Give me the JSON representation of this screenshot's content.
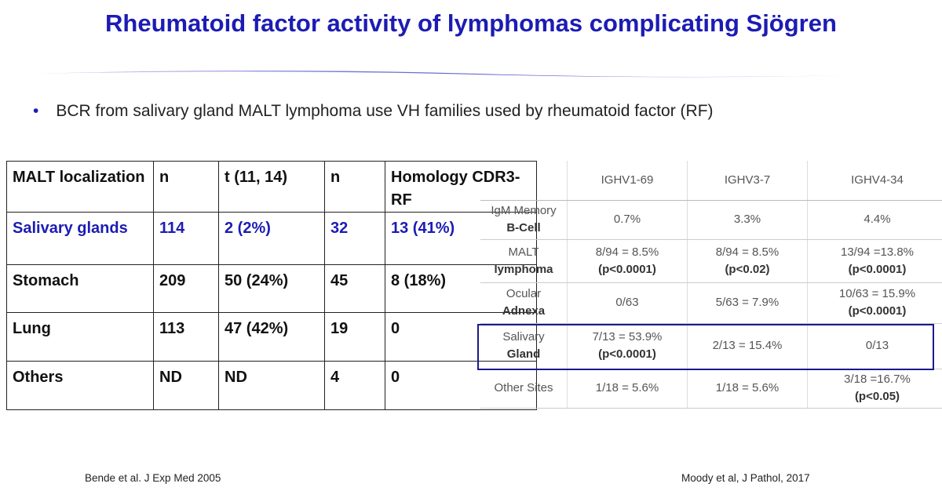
{
  "title": "Rheumatoid factor activity of lymphomas complicating Sjögren",
  "bullet": "BCR from salivary gland MALT lymphoma use VH families used by rheumatoid factor (RF)",
  "table1": {
    "header": [
      "MALT localization",
      "n",
      "t (11, 14)",
      "n",
      "Homology CDR3-RF"
    ],
    "rows": [
      [
        "Salivary glands",
        "114",
        "2 (2%)",
        "32",
        "13 (41%)"
      ],
      [
        "Stomach",
        "209",
        "50 (24%)",
        "45",
        "8 (18%)"
      ],
      [
        "Lung",
        "113",
        "47 (42%)",
        "19",
        "0"
      ],
      [
        "Others",
        "ND",
        "ND",
        "4",
        "0"
      ]
    ]
  },
  "table2": {
    "header": [
      "IGHV1-69",
      "IGHV3-7",
      "IGHV4-34"
    ],
    "rows": [
      [
        [
          "IgM Memory",
          "B-Cell"
        ],
        [
          "0.7%"
        ],
        [
          "3.3%"
        ],
        [
          "4.4%"
        ]
      ],
      [
        [
          "MALT",
          "lymphoma"
        ],
        [
          "8/94 = 8.5%",
          "(p<0.0001)"
        ],
        [
          "8/94 = 8.5%",
          "(p<0.02)"
        ],
        [
          "13/94 =13.8%",
          "(p<0.0001)"
        ]
      ],
      [
        [
          "Ocular",
          "Adnexa"
        ],
        [
          "0/63"
        ],
        [
          "5/63 = 7.9%"
        ],
        [
          "10/63 = 15.9%",
          "(p<0.0001)"
        ]
      ],
      [
        [
          "Salivary",
          "Gland"
        ],
        [
          "7/13 = 53.9%",
          "(p<0.0001)"
        ],
        [
          "2/13 = 15.4%"
        ],
        [
          "0/13"
        ]
      ],
      [
        [
          "Other Sites"
        ],
        [
          "1/18 = 5.6%"
        ],
        [
          "1/18 = 5.6%"
        ],
        [
          "3/18 =16.7%",
          "(p<0.05)"
        ]
      ]
    ]
  },
  "citations": [
    "Bende et al. J Exp Med 2005",
    "Moody et al, J Pathol, 2017"
  ]
}
